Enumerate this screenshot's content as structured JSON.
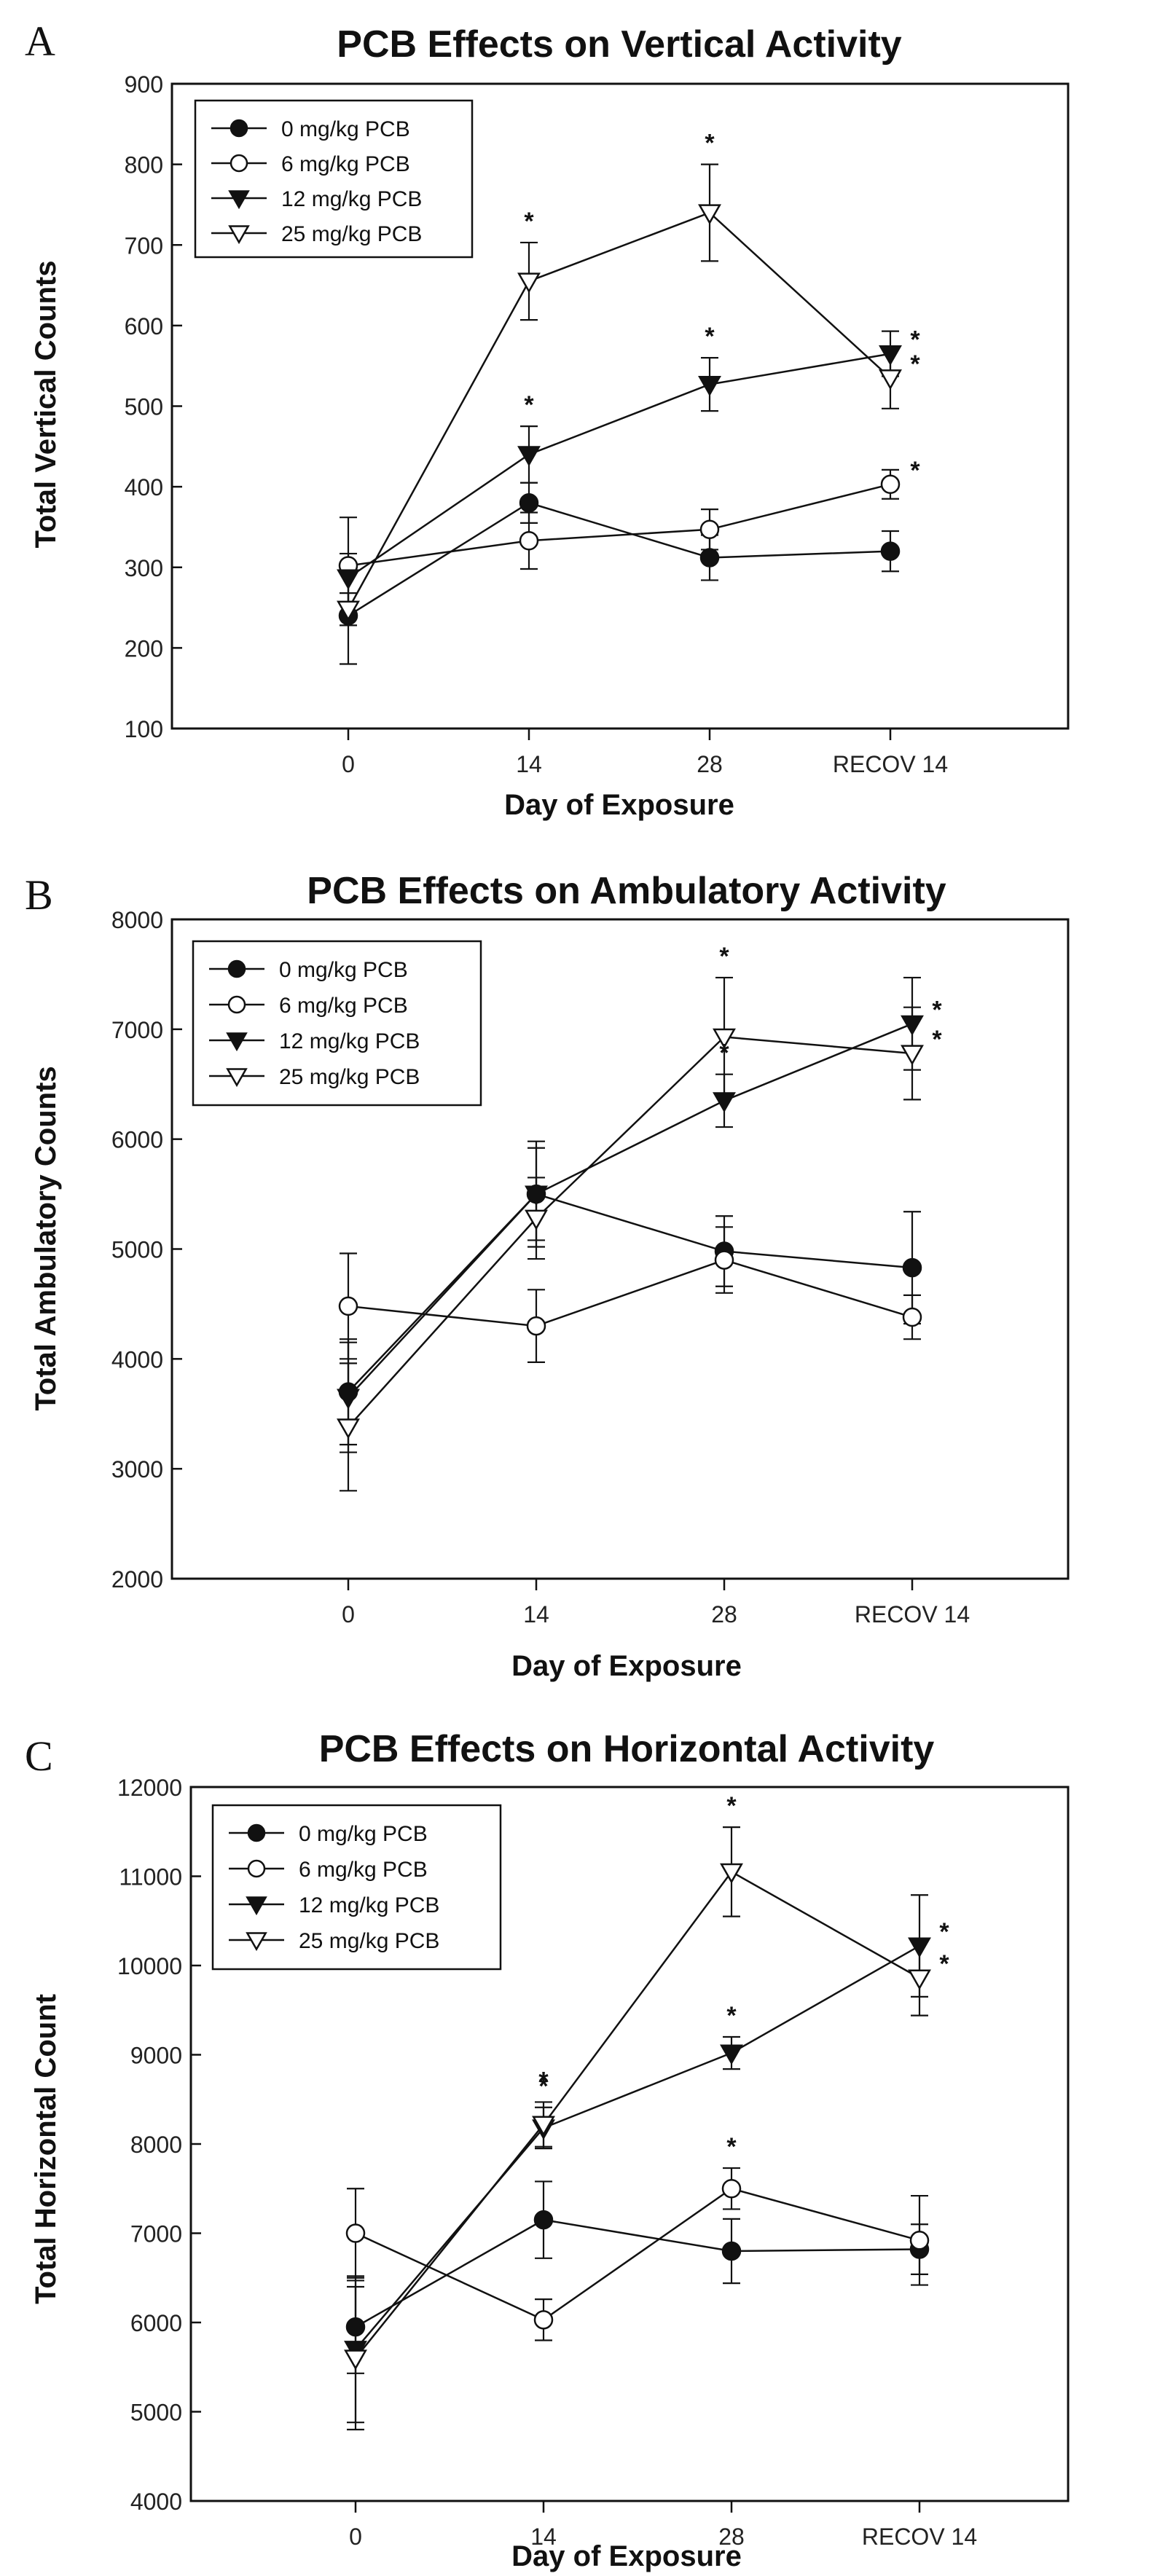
{
  "chart_data": [
    {
      "type": "line",
      "panel_label": "A",
      "title": "PCB Effects on Vertical Activity",
      "xlabel": "Day of Exposure",
      "ylabel": "Total Vertical Counts",
      "categories": [
        "0",
        "14",
        "28",
        "RECOV 14"
      ],
      "ylim": [
        100,
        900
      ],
      "yticks": [
        100,
        200,
        300,
        400,
        500,
        600,
        700,
        800,
        900
      ],
      "ytick_labels": [
        "100",
        "200",
        "300",
        "400",
        "500",
        "600",
        "700",
        "800",
        "900"
      ],
      "legend_position": "top-left",
      "series": [
        {
          "name": "0 mg/kg PCB",
          "marker": "circle-filled",
          "values": [
            240,
            380,
            312,
            320
          ],
          "errors": [
            60,
            25,
            28,
            25
          ],
          "sig": [
            false,
            false,
            false,
            false
          ]
        },
        {
          "name": "6 mg/kg PCB",
          "marker": "circle-open",
          "values": [
            302,
            333,
            347,
            403
          ],
          "errors": [
            60,
            35,
            25,
            18
          ],
          "sig": [
            false,
            false,
            false,
            true
          ]
        },
        {
          "name": "12 mg/kg PCB",
          "marker": "triangle-down-filled",
          "values": [
            287,
            440,
            527,
            565
          ],
          "errors": [
            30,
            35,
            33,
            28
          ],
          "sig": [
            false,
            true,
            true,
            true
          ]
        },
        {
          "name": "25 mg/kg PCB",
          "marker": "triangle-down-open",
          "values": [
            248,
            655,
            740,
            535
          ],
          "errors": [
            20,
            48,
            60,
            38
          ],
          "sig": [
            false,
            true,
            true,
            true
          ]
        }
      ],
      "sig_label": "*"
    },
    {
      "type": "line",
      "panel_label": "B",
      "title": "PCB Effects on Ambulatory Activity",
      "xlabel": "Day of Exposure",
      "ylabel": "Total Ambulatory Counts",
      "categories": [
        "0",
        "14",
        "28",
        "RECOV 14"
      ],
      "ylim": [
        2000,
        8000
      ],
      "yticks": [
        2000,
        3000,
        4000,
        5000,
        6000,
        7000,
        8000
      ],
      "ytick_labels": [
        "2000",
        "3000",
        "4000",
        "5000",
        "6000",
        "7000",
        "8000"
      ],
      "legend_position": "top-left",
      "series": [
        {
          "name": "0 mg/kg PCB",
          "marker": "circle-filled",
          "values": [
            3700,
            5500,
            4980,
            4830
          ],
          "errors": [
            480,
            480,
            320,
            510
          ],
          "sig": [
            false,
            false,
            false,
            false
          ]
        },
        {
          "name": "6 mg/kg PCB",
          "marker": "circle-open",
          "values": [
            4480,
            4300,
            4900,
            4380
          ],
          "errors": [
            480,
            330,
            300,
            200
          ],
          "sig": [
            false,
            false,
            false,
            false
          ]
        },
        {
          "name": "12 mg/kg PCB",
          "marker": "triangle-down-filled",
          "values": [
            3650,
            5500,
            6350,
            7050
          ],
          "errors": [
            500,
            420,
            240,
            420
          ],
          "sig": [
            false,
            false,
            true,
            true
          ]
        },
        {
          "name": "25 mg/kg PCB",
          "marker": "triangle-down-open",
          "values": [
            3380,
            5280,
            6930,
            6780
          ],
          "errors": [
            580,
            370,
            540,
            420
          ],
          "sig": [
            false,
            false,
            true,
            true
          ]
        }
      ],
      "sig_label": "*"
    },
    {
      "type": "line",
      "panel_label": "C",
      "title": "PCB Effects on Horizontal Activity",
      "xlabel": "Day of Exposure",
      "ylabel": "Total Horizontal Count",
      "categories": [
        "0",
        "14",
        "28",
        "RECOV 14"
      ],
      "ylim": [
        4000,
        12000
      ],
      "yticks": [
        4000,
        5000,
        6000,
        7000,
        8000,
        9000,
        10000,
        11000,
        12000
      ],
      "ytick_labels": [
        "4000",
        "5000",
        "6000",
        "7000",
        "8000",
        "9000",
        "10000",
        "11000",
        "12000"
      ],
      "legend_position": "top-left",
      "series": [
        {
          "name": "0 mg/kg PCB",
          "marker": "circle-filled",
          "values": [
            5950,
            7150,
            6800,
            6820
          ],
          "errors": [
            520,
            430,
            360,
            280
          ],
          "sig": [
            false,
            false,
            false,
            false
          ]
        },
        {
          "name": "6 mg/kg PCB",
          "marker": "circle-open",
          "values": [
            7000,
            6030,
            7500,
            6920
          ],
          "errors": [
            500,
            230,
            230,
            500
          ],
          "sig": [
            false,
            false,
            true,
            false
          ]
        },
        {
          "name": "12 mg/kg PCB",
          "marker": "triangle-down-filled",
          "values": [
            5700,
            8180,
            9020,
            10220
          ],
          "errors": [
            820,
            230,
            180,
            570
          ],
          "sig": [
            false,
            true,
            true,
            true
          ]
        },
        {
          "name": "25 mg/kg PCB",
          "marker": "triangle-down-open",
          "values": [
            5600,
            8220,
            11050,
            9860
          ],
          "errors": [
            800,
            250,
            500,
            420
          ],
          "sig": [
            false,
            true,
            true,
            true
          ]
        }
      ],
      "sig_label": "*"
    }
  ]
}
